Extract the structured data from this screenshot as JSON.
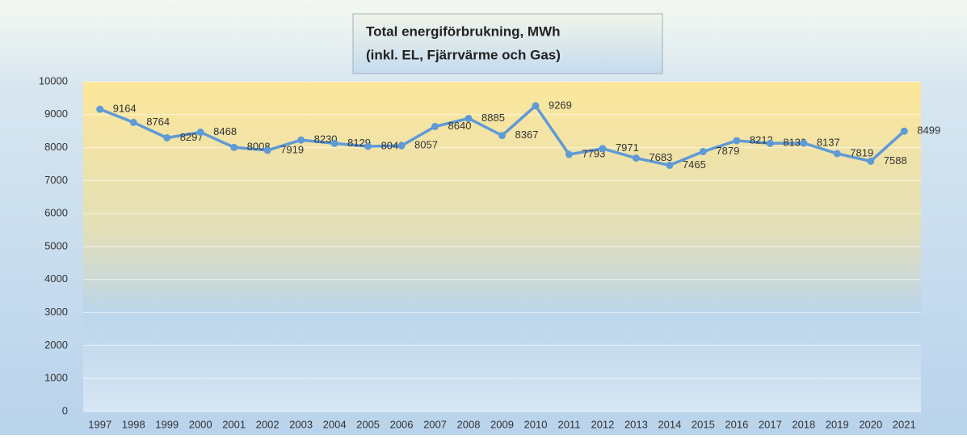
{
  "chart_data": {
    "type": "line",
    "title": "Total energiförbrukning, MWh",
    "subtitle": "(inkl. EL, Fjärrvärme och Gas)",
    "categories": [
      "1997",
      "1998",
      "1999",
      "2000",
      "2001",
      "2002",
      "2003",
      "2004",
      "2005",
      "2006",
      "2007",
      "2008",
      "2009",
      "2010",
      "2011",
      "2012",
      "2013",
      "2014",
      "2015",
      "2016",
      "2017",
      "2018",
      "2019",
      "2020",
      "2021"
    ],
    "series": [
      {
        "name": "Total energiförbrukning",
        "color": "#5f9ad6",
        "values": [
          9164,
          8764,
          8297,
          8468,
          8008,
          7919,
          8230,
          8129,
          8040,
          8057,
          8640,
          8885,
          8367,
          9269,
          7793,
          7971,
          7683,
          7465,
          7879,
          8212,
          8130,
          8137,
          7819,
          7588,
          8499
        ]
      }
    ],
    "ylim": [
      0,
      10000
    ],
    "yticks": [
      0,
      1000,
      2000,
      3000,
      4000,
      5000,
      6000,
      7000,
      8000,
      9000,
      10000
    ],
    "grid": true
  }
}
